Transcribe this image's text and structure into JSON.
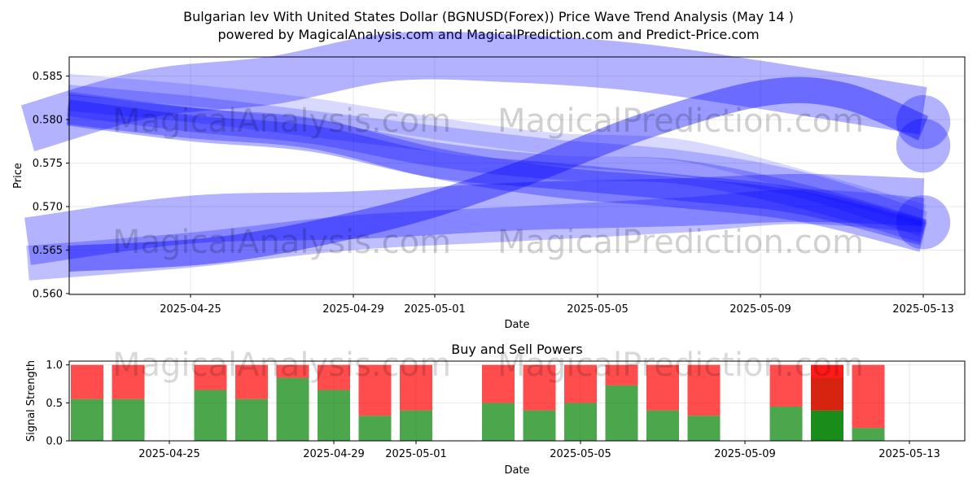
{
  "title_line1": "Bulgarian lev With United States Dollar (BGNUSD(Forex)) Price Wave Trend Analysis (May 14 )",
  "title_line2": "powered by MagicalAnalysis.com and MagicalPrediction.com and Predict-Price.com",
  "watermarks": [
    "MagicalAnalysis.com",
    "MagicalPrediction.com"
  ],
  "colors": {
    "wave": "#0000ff",
    "buy": "#008000",
    "sell": "#ff0000",
    "buy_strong": "#008000",
    "sell_strong": "#ff0000"
  },
  "chart_data": [
    {
      "type": "area",
      "name": "price-wave-trend",
      "title": "",
      "xlabel": "Date",
      "ylabel": "Price",
      "xlim": [
        "2025-04-21",
        "2025-05-13"
      ],
      "ylim": [
        0.5599,
        0.5872
      ],
      "x_ticks": [
        "2025-04-25",
        "2025-04-29",
        "2025-05-01",
        "2025-05-05",
        "2025-05-09",
        "2025-05-13"
      ],
      "y_ticks": [
        0.56,
        0.565,
        0.57,
        0.575,
        0.58,
        0.585
      ],
      "y_tick_labels": [
        "0.560",
        "0.565",
        "0.570",
        "0.575",
        "0.580",
        "0.585"
      ],
      "grid": true,
      "bands": [
        {
          "x": [
            "2025-04-22",
            "2025-04-25",
            "2025-04-28",
            "2025-05-01",
            "2025-05-04",
            "2025-05-07",
            "2025-05-10",
            "2025-05-13"
          ],
          "y": [
            0.5812,
            0.5796,
            0.5784,
            0.575,
            0.5728,
            0.5716,
            0.57,
            0.5665
          ],
          "width": 0.0035,
          "opacity": 0.3
        },
        {
          "x": [
            "2025-04-22",
            "2025-04-25",
            "2025-04-28",
            "2025-05-01",
            "2025-05-04",
            "2025-05-07",
            "2025-05-10",
            "2025-05-13"
          ],
          "y": [
            0.5808,
            0.579,
            0.5778,
            0.5748,
            0.5735,
            0.5722,
            0.5706,
            0.567
          ],
          "width": 0.003,
          "opacity": 0.3
        },
        {
          "x": [
            "2025-04-22",
            "2025-04-25",
            "2025-04-28",
            "2025-05-01",
            "2025-05-04",
            "2025-05-07",
            "2025-05-10",
            "2025-05-13"
          ],
          "y": [
            0.5818,
            0.58,
            0.5786,
            0.576,
            0.5745,
            0.574,
            0.5712,
            0.5672
          ],
          "width": 0.0028,
          "opacity": 0.25
        },
        {
          "x": [
            "2025-04-22",
            "2025-04-25",
            "2025-04-28",
            "2025-05-01",
            "2025-05-04",
            "2025-05-07",
            "2025-05-10",
            "2025-05-13"
          ],
          "y": [
            0.5825,
            0.5812,
            0.5795,
            0.5778,
            0.5762,
            0.575,
            0.5725,
            0.568
          ],
          "width": 0.003,
          "opacity": 0.2
        },
        {
          "x": [
            "2025-04-22",
            "2025-04-25",
            "2025-04-28",
            "2025-05-01",
            "2025-05-04",
            "2025-05-07",
            "2025-05-10",
            "2025-05-13"
          ],
          "y": [
            0.584,
            0.5828,
            0.5812,
            0.579,
            0.5772,
            0.5765,
            0.573,
            0.569
          ],
          "width": 0.0025,
          "opacity": 0.15
        },
        {
          "x": [
            "2025-04-21",
            "2025-04-24",
            "2025-04-27",
            "2025-04-30",
            "2025-05-03",
            "2025-05-06",
            "2025-05-09",
            "2025-05-13"
          ],
          "y": [
            0.579,
            0.583,
            0.5845,
            0.5872,
            0.587,
            0.586,
            0.584,
            0.581
          ],
          "width": 0.0055,
          "opacity": 0.3
        },
        {
          "x": [
            "2025-04-22",
            "2025-04-26",
            "2025-04-30",
            "2025-05-03",
            "2025-05-06",
            "2025-05-09",
            "2025-05-11",
            "2025-05-13"
          ],
          "y": [
            0.564,
            0.5652,
            0.569,
            0.5735,
            0.579,
            0.583,
            0.5828,
            0.579
          ],
          "width": 0.003,
          "opacity": 0.4
        },
        {
          "x": [
            "2025-04-21",
            "2025-04-25",
            "2025-04-29",
            "2025-05-03",
            "2025-05-07",
            "2025-05-10",
            "2025-05-13"
          ],
          "y": [
            0.566,
            0.5685,
            0.569,
            0.57,
            0.5705,
            0.571,
            0.5705
          ],
          "width": 0.0055,
          "opacity": 0.3
        },
        {
          "x": [
            "2025-04-21",
            "2025-04-25",
            "2025-04-29",
            "2025-05-03",
            "2025-05-07",
            "2025-05-10",
            "2025-05-13"
          ],
          "y": [
            0.5635,
            0.565,
            0.567,
            0.568,
            0.569,
            0.57,
            0.569
          ],
          "width": 0.004,
          "opacity": 0.25
        }
      ],
      "end_circles": [
        {
          "x": "2025-05-13",
          "y": 0.5797,
          "r": 0.0031,
          "opacity": 0.3
        },
        {
          "x": "2025-05-13",
          "y": 0.577,
          "r": 0.0031,
          "opacity": 0.3
        },
        {
          "x": "2025-05-13",
          "y": 0.5682,
          "r": 0.0031,
          "opacity": 0.3
        }
      ]
    },
    {
      "type": "bar",
      "name": "buy-sell-powers",
      "title": "Buy and Sell Powers",
      "xlabel": "Date",
      "ylabel": "Signal Strength",
      "xlim": [
        "2025-04-21",
        "2025-05-13"
      ],
      "ylim": [
        0,
        1.05
      ],
      "x_ticks": [
        "2025-04-25",
        "2025-04-29",
        "2025-05-01",
        "2025-05-05",
        "2025-05-09",
        "2025-05-13"
      ],
      "y_ticks": [
        0,
        0.5,
        1.0
      ],
      "y_tick_labels": [
        "0.0",
        "0.5",
        "1.0"
      ],
      "grid": true,
      "dates": [
        "2025-04-23",
        "2025-04-24",
        "2025-04-26",
        "2025-04-27",
        "2025-04-28",
        "2025-04-29",
        "2025-04-30",
        "2025-05-01",
        "2025-05-03",
        "2025-05-04",
        "2025-05-05",
        "2025-05-06",
        "2025-05-07",
        "2025-05-08",
        "2025-05-10",
        "2025-05-11",
        "2025-05-12"
      ],
      "series": [
        {
          "name": "Buy",
          "values": [
            0.55,
            0.55,
            0.67,
            0.55,
            0.83,
            0.67,
            0.33,
            0.4,
            0.5,
            0.4,
            0.5,
            0.73,
            0.4,
            0.33,
            0.45,
            0.4,
            0.17
          ]
        },
        {
          "name": "Sell",
          "values": [
            0.45,
            0.45,
            0.33,
            0.45,
            0.17,
            0.33,
            0.67,
            0.6,
            0.5,
            0.6,
            0.5,
            0.27,
            0.6,
            0.67,
            0.55,
            0.6,
            0.83
          ]
        }
      ],
      "highlight_date": "2025-05-11"
    }
  ]
}
